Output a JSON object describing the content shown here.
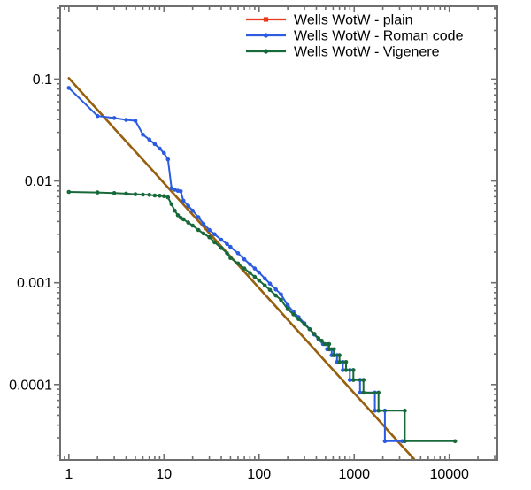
{
  "figure": {
    "kind": "rank-frequency log-log plot",
    "background": "#ffffff",
    "frame_color": "#6f6f6f",
    "text_color": "#000000"
  },
  "chart_data": {
    "type": "line",
    "x_scale": "log",
    "y_scale": "log",
    "title": "",
    "xlabel": "",
    "ylabel": "",
    "xlim": [
      0.81,
      32000
    ],
    "ylim": [
      1.82e-05,
      0.52
    ],
    "grid": false,
    "legend_position": "top-center-inside",
    "x_ticks": [
      1,
      10,
      100,
      1000,
      10000
    ],
    "x_tick_labels": [
      "1",
      "10",
      "100",
      "1000",
      "10000"
    ],
    "y_ticks": [
      0.1,
      0.01,
      0.001,
      0.0001
    ],
    "y_tick_labels": [
      "0.1",
      "0.01",
      "0.001",
      "0.0001"
    ],
    "series": [
      {
        "name": "Wells WotW - plain",
        "legend_color": "#e8391d",
        "line_color": "#96600e",
        "line_width": 2.6,
        "markers": false,
        "legend_marker": "square",
        "points": [
          [
            1,
            0.102
          ],
          [
            2,
            0.0499
          ],
          [
            3,
            0.0328
          ],
          [
            5,
            0.0194
          ],
          [
            7,
            0.0138
          ],
          [
            10,
            0.00952
          ],
          [
            15,
            0.00627
          ],
          [
            20,
            0.00466
          ],
          [
            30,
            0.00307
          ],
          [
            50,
            0.00181
          ],
          [
            70,
            0.00128
          ],
          [
            100,
            0.000887
          ],
          [
            150,
            0.000585
          ],
          [
            200,
            0.000433
          ],
          [
            300,
            0.000285
          ],
          [
            500,
            0.000168
          ],
          [
            700,
            0.000119
          ],
          [
            1000,
            8.24e-05
          ],
          [
            1500,
            5.43e-05
          ],
          [
            2000,
            4.03e-05
          ],
          [
            3000,
            2.65e-05
          ],
          [
            4250,
            1.86e-05
          ]
        ]
      },
      {
        "name": "Wells WotW - Roman code",
        "legend_color": "#2b5be0",
        "line_color": "#2b5be0",
        "line_width": 2,
        "markers": true,
        "legend_marker": "circle",
        "points": [
          [
            1,
            0.082
          ],
          [
            2,
            0.0435
          ],
          [
            3,
            0.0415
          ],
          [
            4,
            0.0398
          ],
          [
            5,
            0.039
          ],
          [
            6,
            0.0285
          ],
          [
            7,
            0.0255
          ],
          [
            8,
            0.023
          ],
          [
            9,
            0.0208
          ],
          [
            10,
            0.0188
          ],
          [
            11,
            0.0163
          ],
          [
            12,
            0.0085
          ],
          [
            13,
            0.0082
          ],
          [
            14,
            0.008
          ],
          [
            15,
            0.0079
          ],
          [
            16,
            0.0064
          ],
          [
            18,
            0.0057
          ],
          [
            20,
            0.0051
          ],
          [
            23,
            0.0044
          ],
          [
            26,
            0.0038
          ],
          [
            30,
            0.0033
          ],
          [
            34,
            0.003
          ],
          [
            40,
            0.00265
          ],
          [
            46,
            0.0024
          ],
          [
            50,
            0.00225
          ],
          [
            60,
            0.00195
          ],
          [
            70,
            0.0017
          ],
          [
            80,
            0.00152
          ],
          [
            90,
            0.00138
          ],
          [
            100,
            0.00126
          ],
          [
            115,
            0.0011
          ],
          [
            130,
            0.00098
          ],
          [
            150,
            0.00086
          ],
          [
            170,
            0.00077
          ],
          [
            200,
            0.0006
          ],
          [
            230,
            0.00052
          ],
          [
            260,
            0.00046
          ],
          [
            300,
            0.0004
          ],
          [
            340,
            0.00035
          ],
          [
            380,
            0.00031
          ],
          [
            420,
            0.00028
          ],
          [
            470,
            0.00025
          ],
          [
            520,
            0.00025
          ],
          [
            520,
            0.0002222
          ],
          [
            580,
            0.0002222
          ],
          [
            580,
            0.0001944
          ],
          [
            660,
            0.0001944
          ],
          [
            660,
            0.0001667
          ],
          [
            760,
            0.0001667
          ],
          [
            760,
            0.0001389
          ],
          [
            900,
            0.0001389
          ],
          [
            900,
            0.0001111
          ],
          [
            1150,
            0.0001111
          ],
          [
            1150,
            8.33e-05
          ],
          [
            1650,
            8.33e-05
          ],
          [
            1650,
            5.56e-05
          ],
          [
            2100,
            5.56e-05
          ],
          [
            2100,
            2.78e-05
          ],
          [
            3200,
            2.78e-05
          ]
        ]
      },
      {
        "name": "Wells WotW - Vigenere",
        "legend_color": "#17693a",
        "line_color": "#17693a",
        "line_width": 2,
        "markers": true,
        "legend_marker": "circle",
        "points": [
          [
            1,
            0.0078
          ],
          [
            2,
            0.0077
          ],
          [
            3,
            0.0076
          ],
          [
            4,
            0.0075
          ],
          [
            5,
            0.0074
          ],
          [
            6,
            0.00735
          ],
          [
            7,
            0.0073
          ],
          [
            8,
            0.0072
          ],
          [
            9,
            0.00715
          ],
          [
            10,
            0.0071
          ],
          [
            11,
            0.0069
          ],
          [
            12,
            0.0059
          ],
          [
            13,
            0.0051
          ],
          [
            14,
            0.0046
          ],
          [
            15,
            0.00435
          ],
          [
            16,
            0.0042
          ],
          [
            18,
            0.0039
          ],
          [
            20,
            0.00365
          ],
          [
            23,
            0.0033
          ],
          [
            26,
            0.00305
          ],
          [
            30,
            0.0028
          ],
          [
            34,
            0.0025
          ],
          [
            40,
            0.0022
          ],
          [
            46,
            0.00195
          ],
          [
            50,
            0.00175
          ],
          [
            60,
            0.00155
          ],
          [
            70,
            0.00138
          ],
          [
            80,
            0.00125
          ],
          [
            90,
            0.00114
          ],
          [
            100,
            0.00105
          ],
          [
            115,
            0.00094
          ],
          [
            130,
            0.00085
          ],
          [
            150,
            0.00075
          ],
          [
            170,
            0.00068
          ],
          [
            200,
            0.00055
          ],
          [
            230,
            0.00049
          ],
          [
            260,
            0.00044
          ],
          [
            300,
            0.00039
          ],
          [
            340,
            0.00035
          ],
          [
            380,
            0.000315
          ],
          [
            420,
            0.000285
          ],
          [
            455,
            0.00027
          ],
          [
            490,
            0.00025
          ],
          [
            545,
            0.00025
          ],
          [
            545,
            0.0002222
          ],
          [
            610,
            0.0002222
          ],
          [
            610,
            0.0001944
          ],
          [
            700,
            0.0001944
          ],
          [
            700,
            0.0001667
          ],
          [
            820,
            0.0001667
          ],
          [
            820,
            0.0001389
          ],
          [
            980,
            0.0001389
          ],
          [
            980,
            0.0001111
          ],
          [
            1250,
            0.0001111
          ],
          [
            1250,
            8.33e-05
          ],
          [
            1800,
            8.33e-05
          ],
          [
            1800,
            5.56e-05
          ],
          [
            3400,
            5.56e-05
          ],
          [
            3400,
            2.78e-05
          ],
          [
            11500,
            2.78e-05
          ]
        ]
      }
    ]
  }
}
